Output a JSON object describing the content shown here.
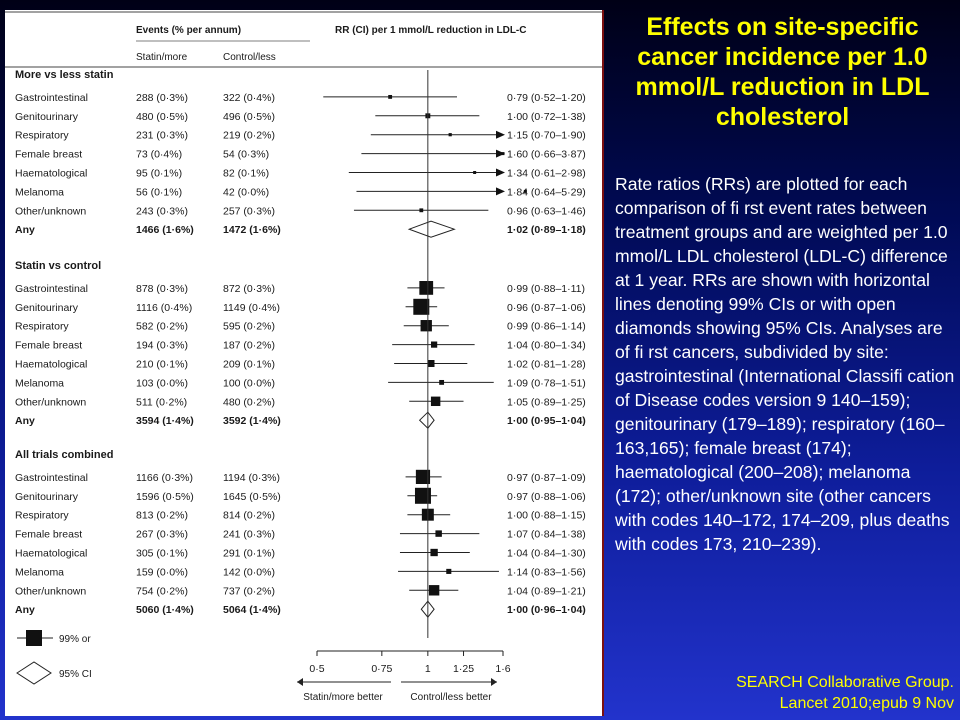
{
  "slide": {
    "title": "Effects on site-specific cancer incidence per 1.0 mmol/L reduction in LDL cholesterol",
    "caption": "Rate ratios (RRs) are plotted for each comparison of fi rst event rates between treatment groups and are weighted per 1.0 mmol/L LDL cholesterol (LDL-C) difference at 1 year. RRs are shown with horizontal lines denoting 99% CIs or with open diamonds showing 95% CIs. Analyses are of fi rst cancers, subdivided by site: gastrointestinal (International Classifi cation of Disease codes version 9 140–159); genitourinary (179–189); respiratory (160–163,165); female breast (174); haematological (200–208); melanoma (172); other/unknown site (other cancers with codes 140–172, 174–209, plus deaths with codes 173, 210–239).",
    "citation": "SEARCH Collaborative Group.\nLancet 2010;epub 9 Nov"
  },
  "chart_data": {
    "type": "forest",
    "scale": "log",
    "xlim": [
      0.5,
      1.6
    ],
    "xticks": [
      "0·5",
      "0·75",
      "1",
      "1·25",
      "1·6"
    ],
    "xtick_values": [
      0.5,
      0.75,
      1.0,
      1.25,
      1.6
    ],
    "header": {
      "events": "Events (% per annum)",
      "col1": "Statin/more",
      "col2": "Control/less",
      "rr": "RR (CI) per 1 mmol/L reduction in LDL-C"
    },
    "x_left_label": "Statin/more better",
    "x_right_label": "Control/less better",
    "legend": {
      "square": "99% or",
      "diamond": "95% CI"
    },
    "groups": [
      {
        "title": "More vs less statin",
        "rows": [
          {
            "site": "Gastrointestinal",
            "a": "288 (0·3%)",
            "b": "322 (0·4%)",
            "rr_text": "0·79 (0·52–1·20)",
            "rr": 0.79,
            "lo": 0.52,
            "hi": 1.2
          },
          {
            "site": "Genitourinary",
            "a": "480 (0·5%)",
            "b": "496 (0·5%)",
            "rr_text": "1·00 (0·72–1·38)",
            "rr": 1.0,
            "lo": 0.72,
            "hi": 1.38
          },
          {
            "site": "Respiratory",
            "a": "231 (0·3%)",
            "b": "219 (0·2%)",
            "rr_text": "1·15 (0·70–1·90)",
            "rr": 1.15,
            "lo": 0.7,
            "hi": 1.9
          },
          {
            "site": "Female breast",
            "a": "73 (0·4%)",
            "b": "54 (0·3%)",
            "rr_text": "1·60 (0·66–3·87)",
            "rr": 1.6,
            "lo": 0.66,
            "hi": 3.87
          },
          {
            "site": "Haematological",
            "a": "95 (0·1%)",
            "b": "82 (0·1%)",
            "rr_text": "1·34 (0·61–2·98)",
            "rr": 1.34,
            "lo": 0.61,
            "hi": 2.98
          },
          {
            "site": "Melanoma",
            "a": "56 (0·1%)",
            "b": "42 (0·0%)",
            "rr_text": "1·84 (0·64–5·29)",
            "rr": 1.84,
            "lo": 0.64,
            "hi": 5.29
          },
          {
            "site": "Other/unknown",
            "a": "243 (0·3%)",
            "b": "257 (0·3%)",
            "rr_text": "0·96 (0·63–1·46)",
            "rr": 0.96,
            "lo": 0.63,
            "hi": 1.46
          }
        ],
        "any": {
          "site": "Any",
          "a": "1466 (1·6%)",
          "b": "1472 (1·6%)",
          "rr_text": "1·02 (0·89–1·18)",
          "rr": 1.02,
          "lo": 0.89,
          "hi": 1.18
        }
      },
      {
        "title": "Statin vs control",
        "rows": [
          {
            "site": "Gastrointestinal",
            "a": "878 (0·3%)",
            "b": "872 (0·3%)",
            "rr_text": "0·99 (0·88–1·11)",
            "rr": 0.99,
            "lo": 0.88,
            "hi": 1.11
          },
          {
            "site": "Genitourinary",
            "a": "1116 (0·4%)",
            "b": "1149 (0·4%)",
            "rr_text": "0·96 (0·87–1·06)",
            "rr": 0.96,
            "lo": 0.87,
            "hi": 1.06
          },
          {
            "site": "Respiratory",
            "a": "582 (0·2%)",
            "b": "595 (0·2%)",
            "rr_text": "0·99 (0·86–1·14)",
            "rr": 0.99,
            "lo": 0.86,
            "hi": 1.14
          },
          {
            "site": "Female breast",
            "a": "194 (0·3%)",
            "b": "187 (0·2%)",
            "rr_text": "1·04 (0·80–1·34)",
            "rr": 1.04,
            "lo": 0.8,
            "hi": 1.34
          },
          {
            "site": "Haematological",
            "a": "210 (0·1%)",
            "b": "209 (0·1%)",
            "rr_text": "1·02 (0·81–1·28)",
            "rr": 1.02,
            "lo": 0.81,
            "hi": 1.28
          },
          {
            "site": "Melanoma",
            "a": "103 (0·0%)",
            "b": "100 (0·0%)",
            "rr_text": "1·09 (0·78–1·51)",
            "rr": 1.09,
            "lo": 0.78,
            "hi": 1.51
          },
          {
            "site": "Other/unknown",
            "a": "511 (0·2%)",
            "b": "480 (0·2%)",
            "rr_text": "1·05 (0·89–1·25)",
            "rr": 1.05,
            "lo": 0.89,
            "hi": 1.25
          }
        ],
        "any": {
          "site": "Any",
          "a": "3594 (1·4%)",
          "b": "3592 (1·4%)",
          "rr_text": "1·00 (0·95–1·04)",
          "rr": 1.0,
          "lo": 0.95,
          "hi": 1.04
        }
      },
      {
        "title": "All trials combined",
        "rows": [
          {
            "site": "Gastrointestinal",
            "a": "1166 (0·3%)",
            "b": "1194 (0·3%)",
            "rr_text": "0·97 (0·87–1·09)",
            "rr": 0.97,
            "lo": 0.87,
            "hi": 1.09
          },
          {
            "site": "Genitourinary",
            "a": "1596 (0·5%)",
            "b": "1645 (0·5%)",
            "rr_text": "0·97 (0·88–1·06)",
            "rr": 0.97,
            "lo": 0.88,
            "hi": 1.06
          },
          {
            "site": "Respiratory",
            "a": "813 (0·2%)",
            "b": "814 (0·2%)",
            "rr_text": "1·00 (0·88–1·15)",
            "rr": 1.0,
            "lo": 0.88,
            "hi": 1.15
          },
          {
            "site": "Female breast",
            "a": "267 (0·3%)",
            "b": "241 (0·3%)",
            "rr_text": "1·07 (0·84–1·38)",
            "rr": 1.07,
            "lo": 0.84,
            "hi": 1.38
          },
          {
            "site": "Haematological",
            "a": "305 (0·1%)",
            "b": "291 (0·1%)",
            "rr_text": "1·04 (0·84–1·30)",
            "rr": 1.04,
            "lo": 0.84,
            "hi": 1.3
          },
          {
            "site": "Melanoma",
            "a": "159 (0·0%)",
            "b": "142 (0·0%)",
            "rr_text": "1·14 (0·83–1·56)",
            "rr": 1.14,
            "lo": 0.83,
            "hi": 1.56
          },
          {
            "site": "Other/unknown",
            "a": "754 (0·2%)",
            "b": "737 (0·2%)",
            "rr_text": "1·04 (0·89–1·21)",
            "rr": 1.04,
            "lo": 0.89,
            "hi": 1.21
          }
        ],
        "any": {
          "site": "Any",
          "a": "5060 (1·4%)",
          "b": "5064 (1·4%)",
          "rr_text": "1·00 (0·96–1·04)",
          "rr": 1.0,
          "lo": 0.96,
          "hi": 1.04
        }
      }
    ]
  }
}
